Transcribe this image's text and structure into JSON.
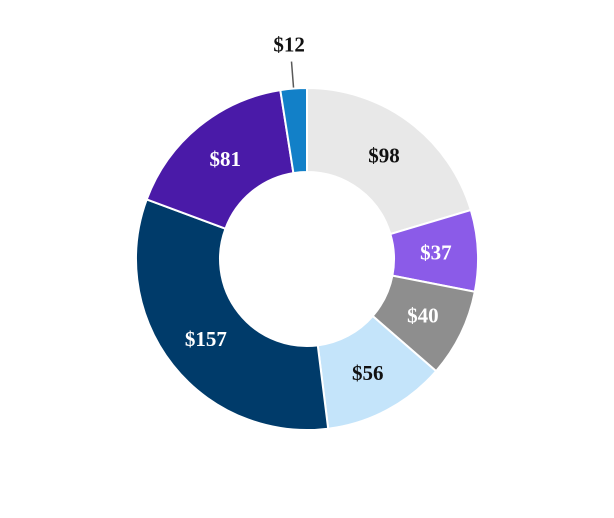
{
  "chart_data": {
    "type": "pie",
    "donut": true,
    "start": "top",
    "direction": "clockwise",
    "legend": "none",
    "grid": false,
    "slices": [
      {
        "label": "$98",
        "value": 98,
        "color": "#E8E8E8",
        "label_color": "#111111"
      },
      {
        "label": "$37",
        "value": 37,
        "color": "#8B5BE8",
        "label_color": "#FFFFFF"
      },
      {
        "label": "$40",
        "value": 40,
        "color": "#8E8E8E",
        "label_color": "#FFFFFF"
      },
      {
        "label": "$56",
        "value": 56,
        "color": "#C4E4FA",
        "label_color": "#111111"
      },
      {
        "label": "$157",
        "value": 157,
        "color": "#003B6A",
        "label_color": "#FFFFFF"
      },
      {
        "label": "$81",
        "value": 81,
        "color": "#4A1AA8",
        "label_color": "#FFFFFF"
      },
      {
        "label": "$12",
        "value": 12,
        "color": "#1280C8",
        "label_color": "#111111",
        "callout": true
      }
    ]
  }
}
